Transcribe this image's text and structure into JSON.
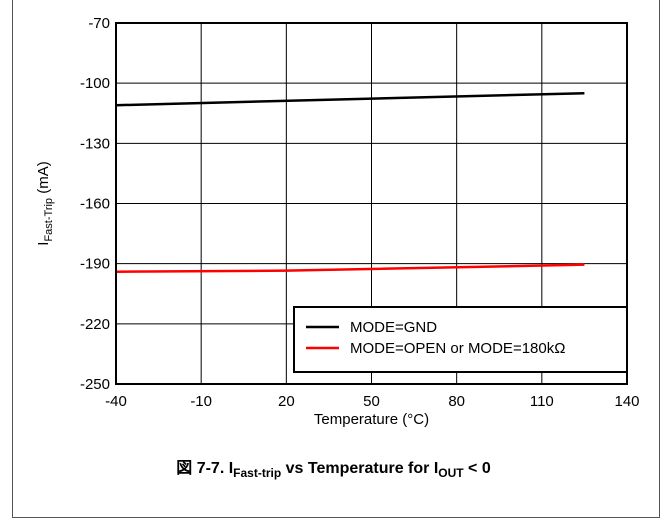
{
  "chart_data": {
    "type": "line",
    "title": "",
    "xlabel": "Temperature (°C)",
    "ylabel": {
      "main": "I",
      "sub": "Fast-Trip",
      "unit": " (mA)"
    },
    "xlim": [
      -40,
      140
    ],
    "ylim": [
      -250,
      -70
    ],
    "x_ticks": [
      -40,
      -10,
      20,
      50,
      80,
      110,
      140
    ],
    "y_ticks": [
      -70,
      -100,
      -130,
      -160,
      -190,
      -220,
      -250
    ],
    "grid": true,
    "legend_position": "bottom-right",
    "series": [
      {
        "name": "MODE=GND",
        "color": "#000000",
        "x": [
          -40,
          125
        ],
        "y": [
          -111,
          -105
        ]
      },
      {
        "name": "MODE=OPEN or MODE=180kΩ",
        "color": "#ff0000",
        "x": [
          -40,
          20,
          125
        ],
        "y": [
          -194,
          -193.5,
          -190.5
        ]
      }
    ]
  },
  "caption": {
    "prefix": "図 7-7. I",
    "sub1": "Fast-trip",
    "middle": " vs Temperature for I",
    "sub2": "OUT",
    "suffix": " < 0"
  }
}
